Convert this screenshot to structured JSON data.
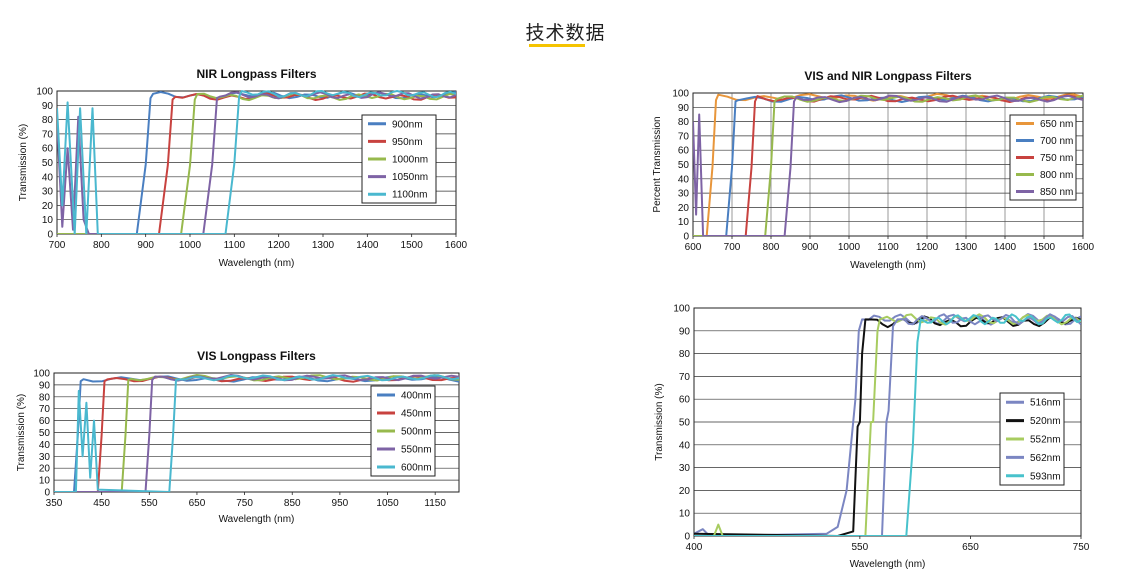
{
  "page": {
    "title": "技术数据"
  },
  "chart_data": [
    {
      "id": "nir",
      "type": "line",
      "title": "NIR Longpass Filters",
      "xlabel": "Wavelength (nm)",
      "ylabel": "Transmission (%)",
      "xlim": [
        700,
        1600
      ],
      "ylim": [
        0,
        100
      ],
      "xticks": [
        700,
        800,
        900,
        1000,
        1100,
        1200,
        1300,
        1400,
        1500,
        1600
      ],
      "yticks": [
        0,
        10,
        20,
        30,
        40,
        50,
        60,
        70,
        80,
        90,
        100
      ],
      "grid": "horizontal",
      "legend_position": "right",
      "series": [
        {
          "name": "900nm",
          "color": "#4a7fc1",
          "cut": 900,
          "edge": 18,
          "plateau": 97,
          "pre": [
            [
              700,
              0
            ],
            [
              880,
              0
            ]
          ]
        },
        {
          "name": "950nm",
          "color": "#c8423f",
          "cut": 950,
          "edge": 18,
          "plateau": 96,
          "pre": [
            [
              700,
              0
            ],
            [
              930,
              0
            ]
          ]
        },
        {
          "name": "1000nm",
          "color": "#97b94d",
          "cut": 1000,
          "edge": 18,
          "plateau": 96,
          "pre": [
            [
              700,
              0
            ],
            [
              980,
              0
            ]
          ]
        },
        {
          "name": "1050nm",
          "color": "#7e63a5",
          "cut": 1050,
          "edge": 18,
          "plateau": 97,
          "pre": [
            [
              700,
              80
            ],
            [
              712,
              5
            ],
            [
              724,
              60
            ],
            [
              736,
              3
            ],
            [
              748,
              82
            ],
            [
              760,
              10
            ],
            [
              772,
              0
            ],
            [
              1030,
              0
            ]
          ]
        },
        {
          "name": "1100nm",
          "color": "#4ab8cf",
          "cut": 1100,
          "edge": 18,
          "plateau": 98,
          "pre": [
            [
              700,
              88
            ],
            [
              712,
              20
            ],
            [
              724,
              92
            ],
            [
              740,
              0
            ],
            [
              752,
              88
            ],
            [
              766,
              0
            ],
            [
              780,
              88
            ],
            [
              792,
              0
            ],
            [
              1080,
              0
            ]
          ]
        }
      ]
    },
    {
      "id": "visnir",
      "type": "line",
      "title": "VIS and NIR Longpass Filters",
      "xlabel": "Wavelength (nm)",
      "ylabel": "Percent Transmission",
      "xlim": [
        600,
        1600
      ],
      "ylim": [
        0,
        100
      ],
      "xticks": [
        600,
        700,
        800,
        900,
        1000,
        1100,
        1200,
        1300,
        1400,
        1500,
        1600
      ],
      "yticks": [
        0,
        10,
        20,
        30,
        40,
        50,
        60,
        70,
        80,
        90,
        100
      ],
      "grid": "both",
      "legend_position": "right",
      "series": [
        {
          "name": "650 nm",
          "color": "#e8963b",
          "cut": 650,
          "edge": 15,
          "plateau": 97,
          "pre": [
            [
              600,
              0
            ],
            [
              635,
              0
            ]
          ]
        },
        {
          "name": "700 nm",
          "color": "#4a7fc1",
          "cut": 700,
          "edge": 15,
          "plateau": 96,
          "pre": [
            [
              600,
              0
            ],
            [
              685,
              0
            ]
          ]
        },
        {
          "name": "750 nm",
          "color": "#c8423f",
          "cut": 750,
          "edge": 15,
          "plateau": 96,
          "pre": [
            [
              600,
              0
            ],
            [
              735,
              0
            ]
          ]
        },
        {
          "name": "800 nm",
          "color": "#97b94d",
          "cut": 800,
          "edge": 15,
          "plateau": 96,
          "pre": [
            [
              600,
              0
            ],
            [
              785,
              0
            ]
          ]
        },
        {
          "name": "850 nm",
          "color": "#7e63a5",
          "cut": 850,
          "edge": 15,
          "plateau": 96,
          "pre": [
            [
              600,
              80
            ],
            [
              608,
              15
            ],
            [
              616,
              85
            ],
            [
              626,
              0
            ],
            [
              835,
              0
            ]
          ]
        }
      ]
    },
    {
      "id": "vis",
      "type": "line",
      "title": "VIS Longpass Filters",
      "xlabel": "Wavelength (nm)",
      "ylabel": "Transmission (%)",
      "xlim": [
        350,
        1200
      ],
      "ylim": [
        0,
        100
      ],
      "xticks": [
        350,
        450,
        550,
        650,
        750,
        850,
        950,
        1050,
        1150
      ],
      "yticks": [
        0,
        10,
        20,
        30,
        40,
        50,
        60,
        70,
        80,
        90,
        100
      ],
      "grid": "horizontal",
      "legend_position": "right",
      "series": [
        {
          "name": "400nm",
          "color": "#4a7fc1",
          "cut": 400,
          "edge": 10,
          "plateau": 95,
          "pre": [
            [
              350,
              0
            ],
            [
              392,
              0
            ]
          ]
        },
        {
          "name": "450nm",
          "color": "#c8423f",
          "cut": 450,
          "edge": 10,
          "plateau": 95,
          "pre": [
            [
              350,
              0
            ],
            [
              442,
              0
            ]
          ]
        },
        {
          "name": "500nm",
          "color": "#97b94d",
          "cut": 500,
          "edge": 10,
          "plateau": 96,
          "pre": [
            [
              350,
              0
            ],
            [
              492,
              0
            ]
          ]
        },
        {
          "name": "550nm",
          "color": "#7e63a5",
          "cut": 550,
          "edge": 10,
          "plateau": 96,
          "pre": [
            [
              350,
              0
            ],
            [
              542,
              0
            ]
          ]
        },
        {
          "name": "600nm",
          "color": "#4ab8cf",
          "cut": 600,
          "edge": 10,
          "plateau": 96,
          "pre": [
            [
              350,
              0
            ],
            [
              396,
              0
            ],
            [
              402,
              85
            ],
            [
              410,
              30
            ],
            [
              418,
              75
            ],
            [
              426,
              12
            ],
            [
              434,
              60
            ],
            [
              442,
              2
            ],
            [
              592,
              0
            ]
          ]
        }
      ]
    },
    {
      "id": "vis2",
      "type": "line",
      "title": "",
      "xlabel": "Wavelength (nm)",
      "ylabel": "Transmission (%)",
      "xlim": [
        400,
        750
      ],
      "ylim": [
        0,
        100
      ],
      "xticks": [
        400,
        550,
        650,
        750
      ],
      "yticks": [
        0,
        10,
        20,
        30,
        40,
        50,
        60,
        70,
        80,
        90,
        100
      ],
      "grid": "horizontal",
      "legend_position": "right",
      "series": [
        {
          "name": "516nm",
          "color": "#7b86c2",
          "cut": 540,
          "edge": 8,
          "plateau": 95,
          "pre": [
            [
              400,
              1
            ],
            [
              408,
              3
            ],
            [
              414,
              0
            ],
            [
              520,
              1
            ],
            [
              530,
              4
            ],
            [
              538,
              20
            ],
            [
              544,
              50
            ],
            [
              546,
              60
            ],
            [
              549,
              90
            ],
            [
              552,
              95
            ]
          ]
        },
        {
          "name": "520nm",
          "color": "#111111",
          "cut": 550,
          "edge": 6,
          "plateau": 94,
          "pre": [
            [
              400,
              1
            ],
            [
              530,
              0
            ],
            [
              544,
              2
            ],
            [
              548,
              48
            ],
            [
              550,
              50
            ],
            [
              552,
              80
            ],
            [
              555,
              95
            ]
          ]
        },
        {
          "name": "552nm",
          "color": "#a8cc60",
          "cut": 565,
          "edge": 6,
          "plateau": 95,
          "pre": [
            [
              400,
              0
            ],
            [
              418,
              0
            ],
            [
              422,
              5
            ],
            [
              426,
              0
            ],
            [
              555,
              0
            ],
            [
              560,
              50
            ],
            [
              562,
              50
            ],
            [
              566,
              90
            ],
            [
              568,
              95
            ]
          ]
        },
        {
          "name": "562nm",
          "color": "#7b86c2",
          "cut": 576,
          "edge": 6,
          "plateau": 95,
          "pre": [
            [
              400,
              0
            ],
            [
              570,
              0
            ],
            [
              574,
              50
            ],
            [
              576,
              55
            ],
            [
              580,
              92
            ],
            [
              584,
              95
            ]
          ]
        },
        {
          "name": "593nm",
          "color": "#48c2cc",
          "cut": 600,
          "edge": 6,
          "plateau": 95,
          "pre": [
            [
              400,
              0
            ],
            [
              592,
              0
            ],
            [
              598,
              40
            ],
            [
              602,
              85
            ],
            [
              605,
              95
            ]
          ]
        }
      ]
    }
  ]
}
